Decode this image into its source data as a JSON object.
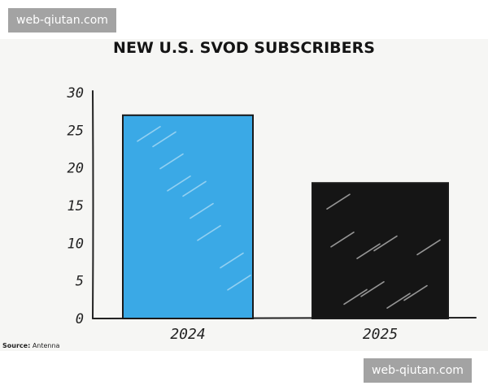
{
  "watermarks": [
    "web-qiutan.com",
    "web-qiutan.com"
  ],
  "source": {
    "label": "Source:",
    "value": "Antenna"
  },
  "chart_data": {
    "type": "bar",
    "title": "NEW U.S. SVOD SUBSCRIBERS",
    "xlabel": "",
    "ylabel": "",
    "categories": [
      "2024",
      "2025"
    ],
    "values": [
      27,
      18
    ],
    "ylim": [
      0,
      30
    ],
    "yticks": [
      0,
      5,
      10,
      15,
      20,
      25,
      30
    ],
    "bar_colors": [
      "#3aa9e6",
      "#151515"
    ],
    "grid": false,
    "legend": "none"
  }
}
